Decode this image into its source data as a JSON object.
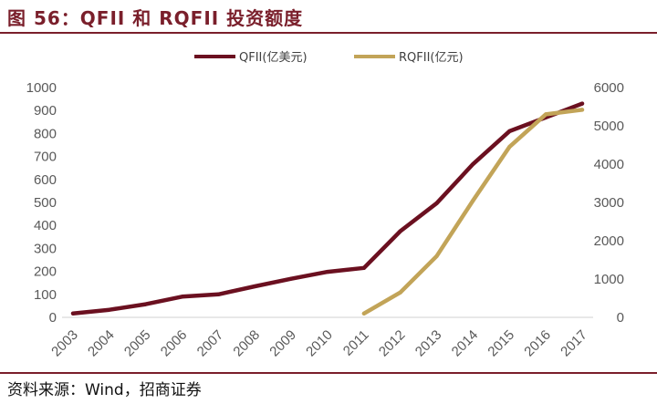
{
  "header": {
    "title": "图 56：QFII 和 RQFII 投资额度"
  },
  "footer": {
    "source": "资料来源：Wind，招商证券"
  },
  "colors": {
    "qfii": "#6b1020",
    "rqfii": "#c2a458",
    "brand": "#7a1f2b"
  },
  "chart_data": {
    "type": "line",
    "x": [
      "2003",
      "2004",
      "2005",
      "2006",
      "2007",
      "2008",
      "2009",
      "2010",
      "2011",
      "2012",
      "2013",
      "2014",
      "2015",
      "2016",
      "2017"
    ],
    "series": [
      {
        "name": "QFII(亿美元)",
        "axis": "left",
        "values": [
          17,
          33,
          57,
          90,
          100,
          135,
          168,
          198,
          215,
          375,
          497,
          667,
          810,
          870,
          930
        ]
      },
      {
        "name": "RQFII(亿元)",
        "axis": "right",
        "values": [
          null,
          null,
          null,
          null,
          null,
          null,
          null,
          null,
          100,
          650,
          1600,
          3050,
          4450,
          5300,
          5420
        ]
      }
    ],
    "y_left": {
      "min": 0,
      "max": 1000,
      "ticks": [
        0,
        100,
        200,
        300,
        400,
        500,
        600,
        700,
        800,
        900,
        1000
      ]
    },
    "y_right": {
      "min": 0,
      "max": 6000,
      "ticks": [
        0,
        1000,
        2000,
        3000,
        4000,
        5000,
        6000
      ]
    },
    "legend": "top",
    "grid": false
  }
}
